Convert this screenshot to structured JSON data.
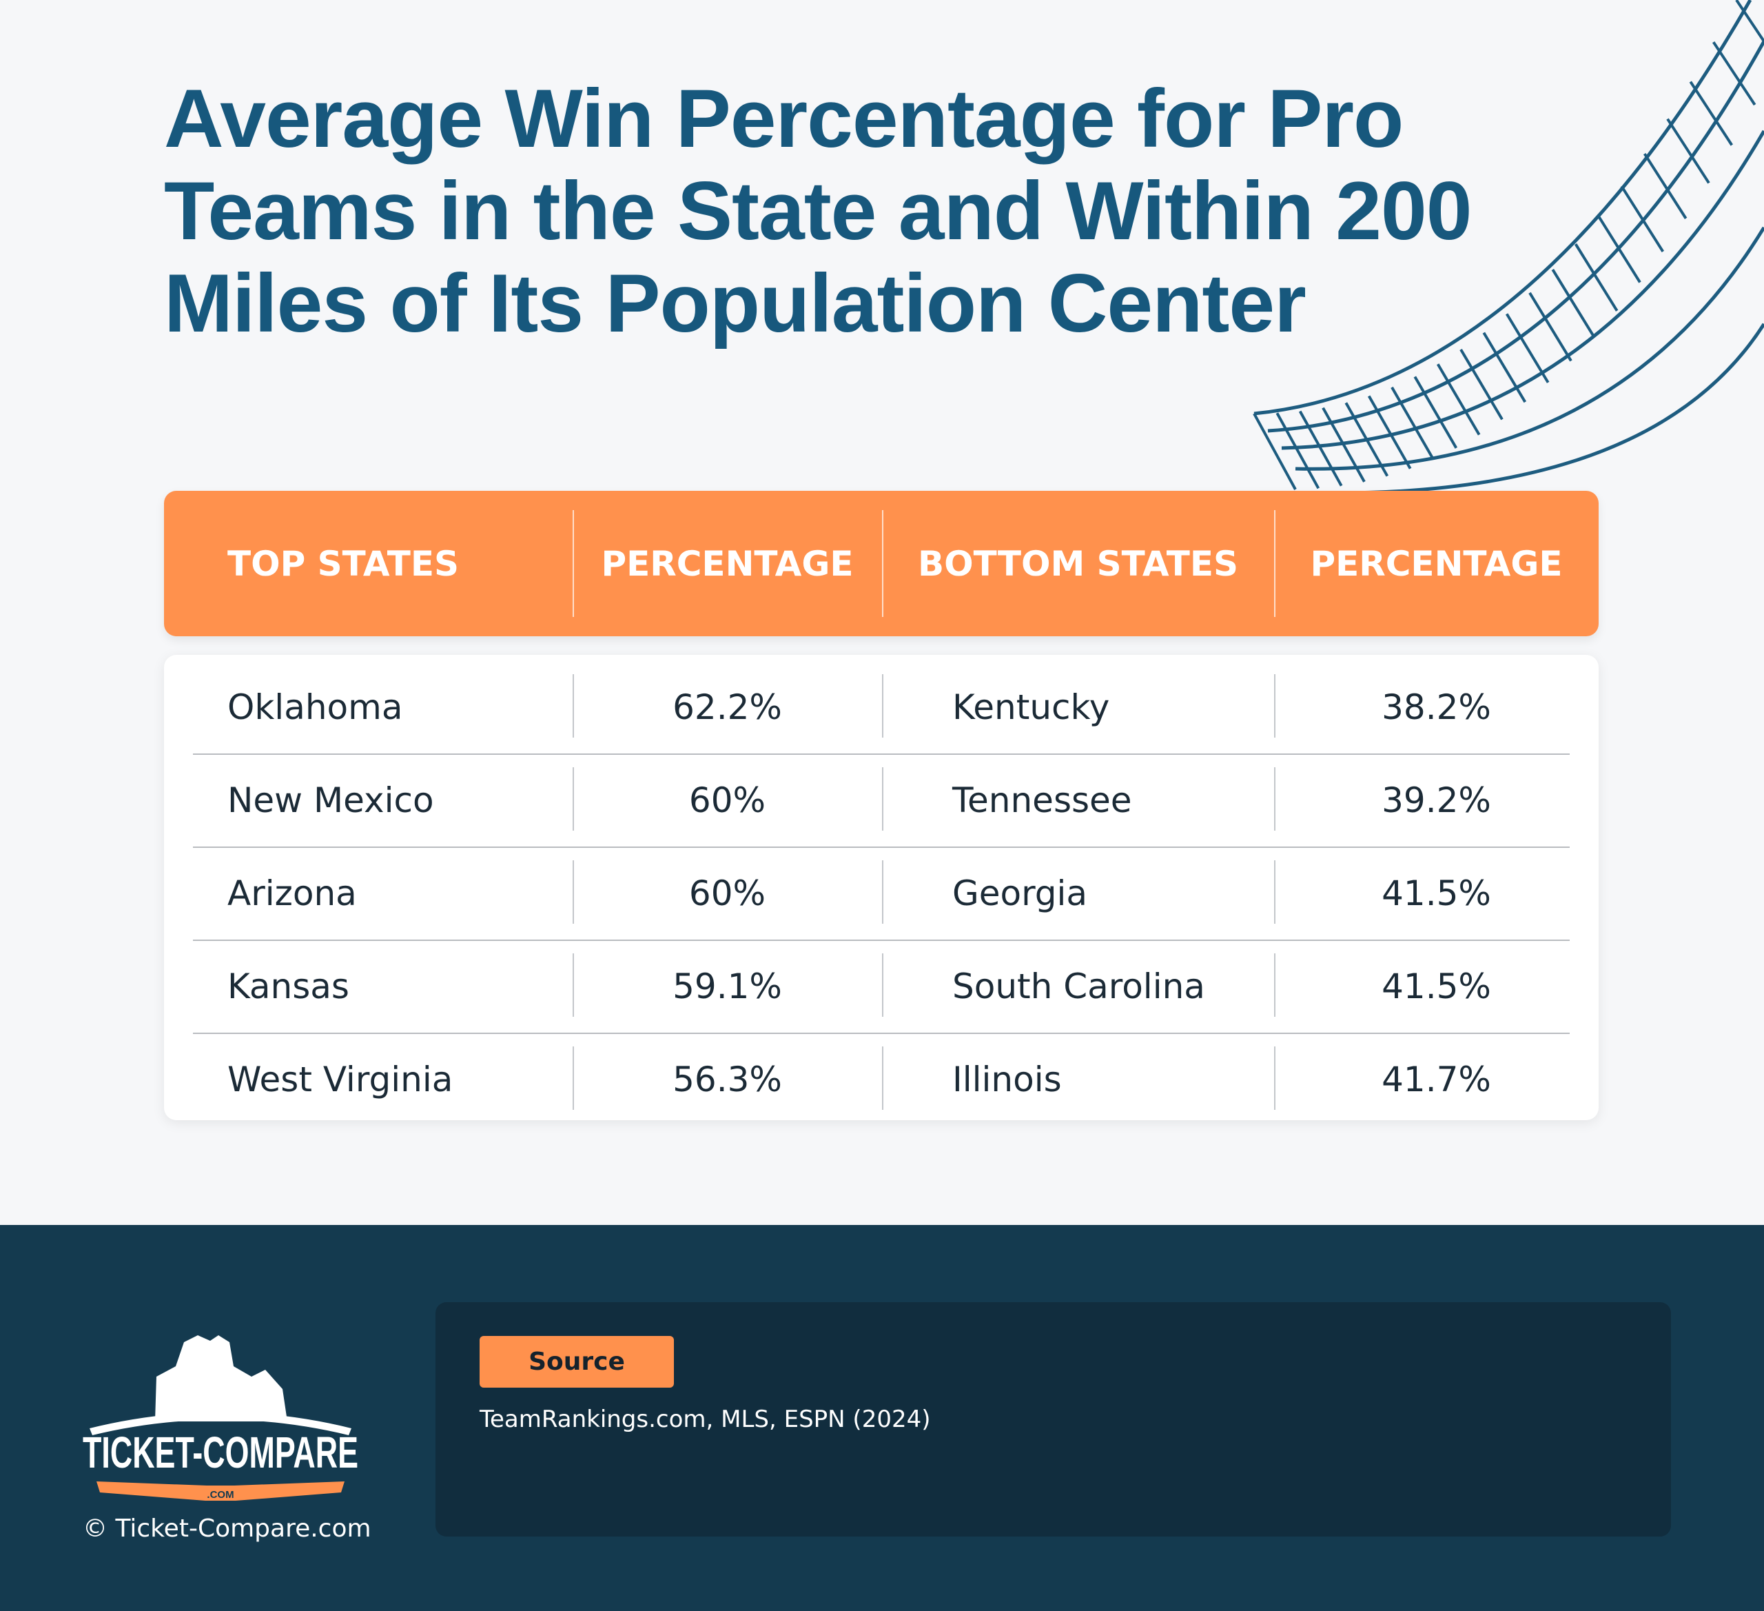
{
  "title": "Average Win Percentage for Pro Teams in the State and Within 200 Miles of Its Population Center",
  "colors": {
    "title": "#17587d",
    "accent": "#ff914d",
    "footer": "#143a4f",
    "source_card": "#112d3e"
  },
  "table": {
    "headers": [
      "TOP STATES",
      "PERCENTAGE",
      "BOTTOM STATES",
      "PERCENTAGE"
    ],
    "rows": [
      [
        "Oklahoma",
        "62.2%",
        "Kentucky",
        "38.2%"
      ],
      [
        "New Mexico",
        "60%",
        "Tennessee",
        "39.2%"
      ],
      [
        "Arizona",
        "60%",
        "Georgia",
        "41.5%"
      ],
      [
        "Kansas",
        "59.1%",
        "South Carolina",
        "41.5%"
      ],
      [
        "West Virginia",
        "56.3%",
        "Illinois",
        "41.7%"
      ]
    ]
  },
  "footer": {
    "source_label": "Source",
    "source_text": "TeamRankings.com, MLS, ESPN (2024)",
    "logo_text": "TICKET-COMPARE .COM",
    "copyright": "© Ticket-Compare.com"
  }
}
